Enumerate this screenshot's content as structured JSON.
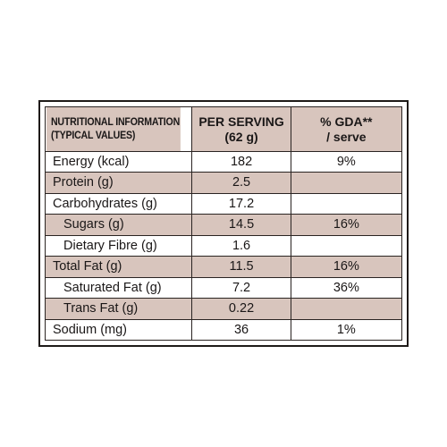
{
  "table": {
    "header": {
      "nutrition_line1": "NUTRITIONAL INFORMATION",
      "nutrition_line2": "(TYPICAL VALUES)",
      "per_serving_line1": "PER SERVING",
      "per_serving_line2": "(62 g)",
      "gda_line1": "% GDA**",
      "gda_line2": "/ serve"
    },
    "rows": [
      {
        "label": "Energy (kcal)",
        "value": "182",
        "gda": "9%"
      },
      {
        "label": "Protein (g)",
        "value": "2.5",
        "gda": ""
      },
      {
        "label": "Carbohydrates (g)",
        "value": "17.2",
        "gda": ""
      },
      {
        "label": "Sugars (g)",
        "value": "14.5",
        "gda": "16%"
      },
      {
        "label": "Dietary Fibre (g)",
        "value": "1.6",
        "gda": ""
      },
      {
        "label": "Total Fat (g)",
        "value": "11.5",
        "gda": "16%"
      },
      {
        "label": "Saturated Fat (g)",
        "value": "7.2",
        "gda": "36%"
      },
      {
        "label": "Trans Fat (g)",
        "value": "0.22",
        "gda": ""
      },
      {
        "label": "Sodium (mg)",
        "value": "36",
        "gda": "1%"
      }
    ],
    "colors": {
      "tint": "#d8c5bd",
      "border": "#1e1a18"
    }
  }
}
